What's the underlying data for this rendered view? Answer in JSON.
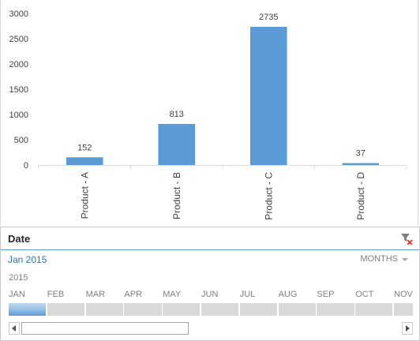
{
  "chart_data": {
    "type": "bar",
    "categories": [
      "Product - A",
      "Product - B",
      "Product - C",
      "Product - D"
    ],
    "values": [
      152,
      813,
      2735,
      37
    ],
    "data_labels": [
      "152",
      "813",
      "2735",
      "37"
    ],
    "ylim": [
      0,
      3000
    ],
    "yticks": [
      0,
      500,
      1000,
      1500,
      2000,
      2500,
      3000
    ],
    "ytick_labels": [
      "0",
      "500",
      "1000",
      "1500",
      "2000",
      "2500",
      "3000"
    ],
    "bar_color": "#5b9bd5",
    "grid": false,
    "legend": "none"
  },
  "timeline": {
    "title": "Date",
    "selection": "Jan 2015",
    "level": "MONTHS",
    "year": "2015",
    "months": [
      "JAN",
      "FEB",
      "MAR",
      "APR",
      "MAY",
      "JUN",
      "JUL",
      "AUG",
      "SEP",
      "OCT",
      "NOV"
    ],
    "selected_month": "JAN",
    "accent_color": "#5b9bd5",
    "selection_color": "#2e75b6",
    "clear_icon": "filter-clear-icon"
  }
}
